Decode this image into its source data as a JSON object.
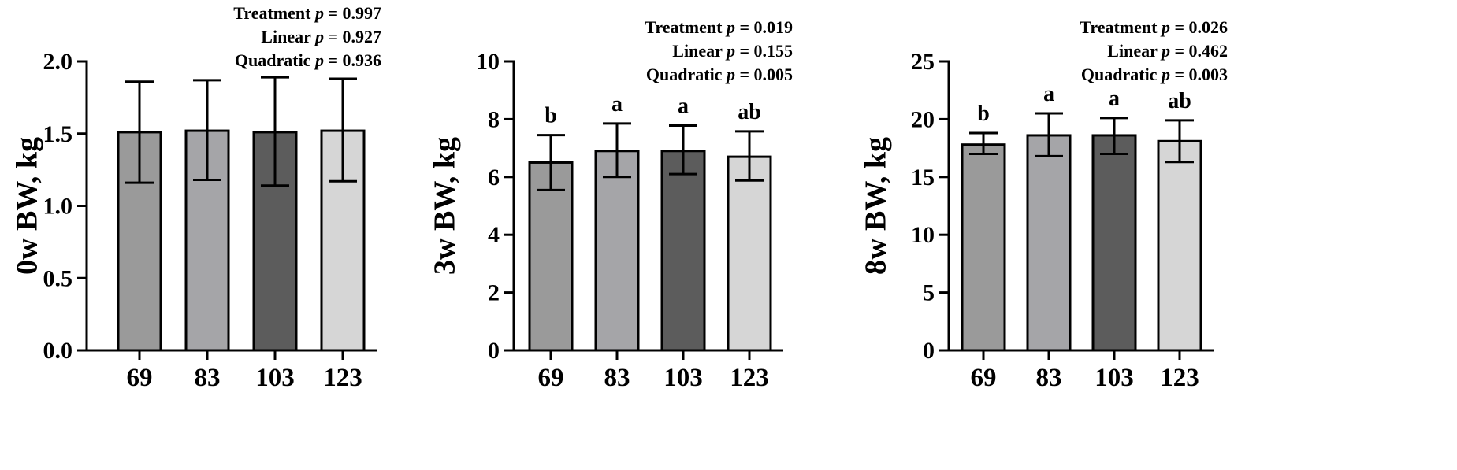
{
  "chart_data": [
    {
      "type": "bar",
      "categories": [
        "69",
        "83",
        "103",
        "123"
      ],
      "values": [
        1.51,
        1.52,
        1.51,
        1.52
      ],
      "error_upper": [
        1.86,
        1.87,
        1.89,
        1.88
      ],
      "error_lower": [
        1.16,
        1.18,
        1.14,
        1.17
      ],
      "bar_colors": [
        "#9a9a9a",
        "#a5a5a8",
        "#5c5c5c",
        "#d6d6d6"
      ],
      "significance_letters": [
        "",
        "",
        "",
        ""
      ],
      "ylabel": "0w BW, kg",
      "ylim": [
        0,
        2.0
      ],
      "yticks": [
        0.0,
        0.5,
        1.0,
        1.5,
        2.0
      ],
      "ytick_labels": [
        "0.0",
        "0.5",
        "1.0",
        "1.5",
        "2.0"
      ],
      "stats": [
        {
          "label": "Treatment",
          "p_symbol": "p",
          "value": "= 0.997"
        },
        {
          "label": "Linear",
          "p_symbol": "p",
          "value": "= 0.927"
        },
        {
          "label": "Quadratic",
          "p_symbol": "p",
          "value": "= 0.936"
        }
      ]
    },
    {
      "type": "bar",
      "categories": [
        "69",
        "83",
        "103",
        "123"
      ],
      "values": [
        6.5,
        6.9,
        6.9,
        6.7
      ],
      "error_upper": [
        7.45,
        7.85,
        7.78,
        7.58
      ],
      "error_lower": [
        5.55,
        6.0,
        6.1,
        5.88
      ],
      "bar_colors": [
        "#9a9a9a",
        "#a5a5a8",
        "#5c5c5c",
        "#d6d6d6"
      ],
      "significance_letters": [
        "b",
        "a",
        "a",
        "ab"
      ],
      "ylabel": "3w BW, kg",
      "ylim": [
        0,
        10
      ],
      "yticks": [
        0,
        2,
        4,
        6,
        8,
        10
      ],
      "ytick_labels": [
        "0",
        "2",
        "4",
        "6",
        "8",
        "10"
      ],
      "stats": [
        {
          "label": "Treatment",
          "p_symbol": "p",
          "value": "= 0.019"
        },
        {
          "label": "Linear",
          "p_symbol": "p",
          "value": "= 0.155"
        },
        {
          "label": "Quadratic",
          "p_symbol": "p",
          "value": "= 0.005"
        }
      ]
    },
    {
      "type": "bar",
      "categories": [
        "69",
        "83",
        "103",
        "123"
      ],
      "values": [
        17.8,
        18.6,
        18.6,
        18.1
      ],
      "error_upper": [
        18.8,
        20.5,
        20.1,
        19.9
      ],
      "error_lower": [
        17.0,
        16.8,
        17.0,
        16.3
      ],
      "bar_colors": [
        "#9a9a9a",
        "#a5a5a8",
        "#5c5c5c",
        "#d6d6d6"
      ],
      "significance_letters": [
        "b",
        "a",
        "a",
        "ab"
      ],
      "ylabel": "8w BW, kg",
      "ylim": [
        0,
        25
      ],
      "yticks": [
        0,
        5,
        10,
        15,
        20,
        25
      ],
      "ytick_labels": [
        "0",
        "5",
        "10",
        "15",
        "20",
        "25"
      ],
      "stats": [
        {
          "label": "Treatment",
          "p_symbol": "p",
          "value": "= 0.026"
        },
        {
          "label": "Linear",
          "p_symbol": "p",
          "value": "= 0.462"
        },
        {
          "label": "Quadratic",
          "p_symbol": "p",
          "value": "= 0.003"
        }
      ]
    }
  ]
}
